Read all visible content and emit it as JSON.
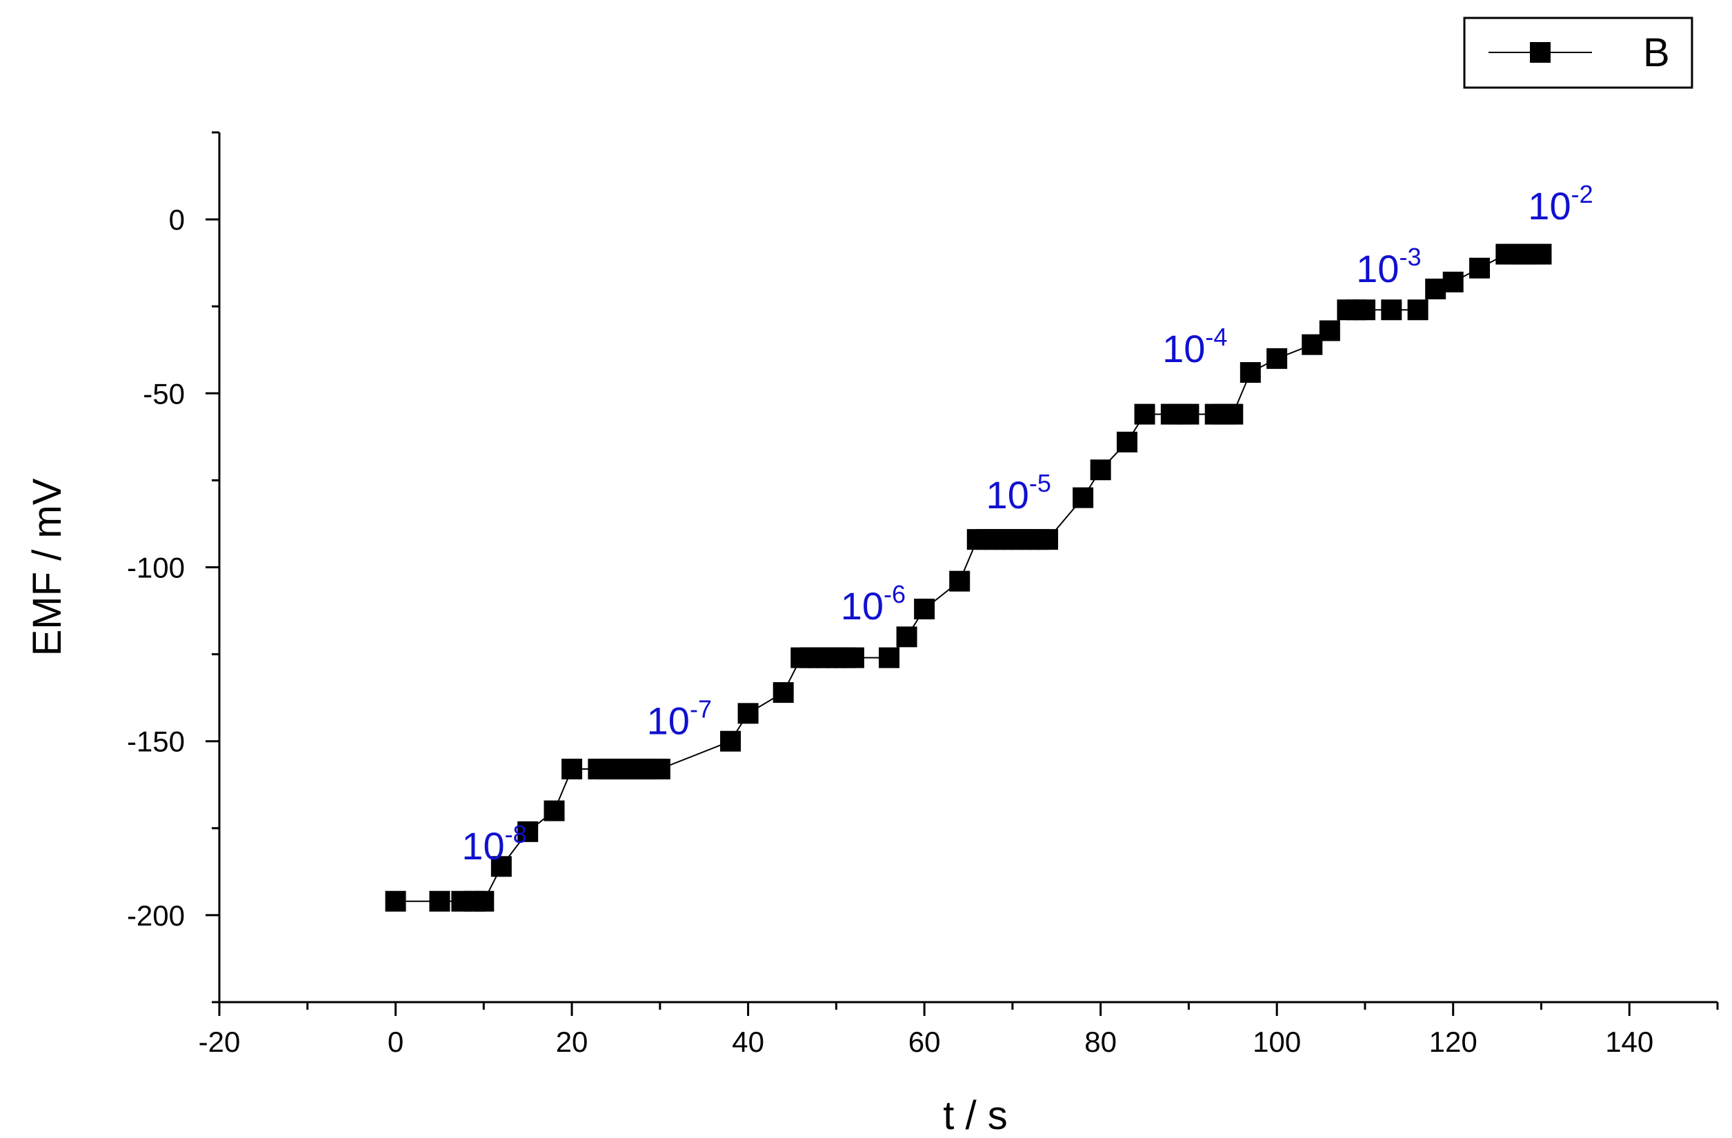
{
  "chart_data": {
    "type": "scatter",
    "title": "",
    "xlabel": "t / s",
    "ylabel": "EMF / mV",
    "xlim": [
      -20,
      150
    ],
    "ylim": [
      -225,
      25
    ],
    "xticks": [
      -20,
      0,
      20,
      40,
      60,
      80,
      100,
      120,
      140
    ],
    "xtick_labels": [
      "-20",
      "0",
      "20",
      "40",
      "60",
      "80",
      "100",
      "120",
      "140"
    ],
    "yticks": [
      -200,
      -150,
      -100,
      -50,
      0
    ],
    "ytick_labels": [
      "-200",
      "-150",
      "-100",
      "-50",
      "0"
    ],
    "grid": false,
    "legend_position": "top-right",
    "series": [
      {
        "name": "B",
        "color": "#000000",
        "marker": "square",
        "x": [
          0,
          5,
          7.5,
          9,
          10,
          12,
          15,
          18,
          20,
          23,
          24,
          25,
          26,
          27,
          28,
          29,
          30,
          38,
          40,
          44,
          46,
          47,
          48,
          49,
          50,
          51,
          52,
          56,
          58,
          60,
          64,
          66,
          67,
          68,
          69,
          70,
          71,
          72,
          73,
          74,
          78,
          80,
          83,
          85,
          88,
          89,
          90,
          93,
          94,
          95,
          97,
          100,
          104,
          106,
          108,
          109,
          110,
          113,
          116,
          118,
          120,
          123,
          126,
          127,
          128,
          129,
          130
        ],
        "y": [
          -196,
          -196,
          -196,
          -196,
          -196,
          -186,
          -176,
          -170,
          -158,
          -158,
          -158,
          -158,
          -158,
          -158,
          -158,
          -158,
          -158,
          -150,
          -142,
          -136,
          -126,
          -126,
          -126,
          -126,
          -126,
          -126,
          -126,
          -126,
          -120,
          -112,
          -104,
          -92,
          -92,
          -92,
          -92,
          -92,
          -92,
          -92,
          -92,
          -92,
          -80,
          -72,
          -64,
          -56,
          -56,
          -56,
          -56,
          -56,
          -56,
          -56,
          -44,
          -40,
          -36,
          -32,
          -26,
          -26,
          -26,
          -26,
          -26,
          -20,
          -18,
          -14,
          -10,
          -10,
          -10,
          -10,
          -10
        ]
      }
    ],
    "annotations": [
      {
        "base": "10",
        "exp": "-8",
        "x": 7.5,
        "y": -184
      },
      {
        "base": "10",
        "exp": "-7",
        "x": 28.5,
        "y": -148
      },
      {
        "base": "10",
        "exp": "-6",
        "x": 50.5,
        "y": -115
      },
      {
        "base": "10",
        "exp": "-5",
        "x": 67,
        "y": -83
      },
      {
        "base": "10",
        "exp": "-4",
        "x": 87,
        "y": -41
      },
      {
        "base": "10",
        "exp": "-3",
        "x": 109,
        "y": -18
      },
      {
        "base": "10",
        "exp": "-2",
        "x": 128.5,
        "y": 0
      }
    ]
  }
}
